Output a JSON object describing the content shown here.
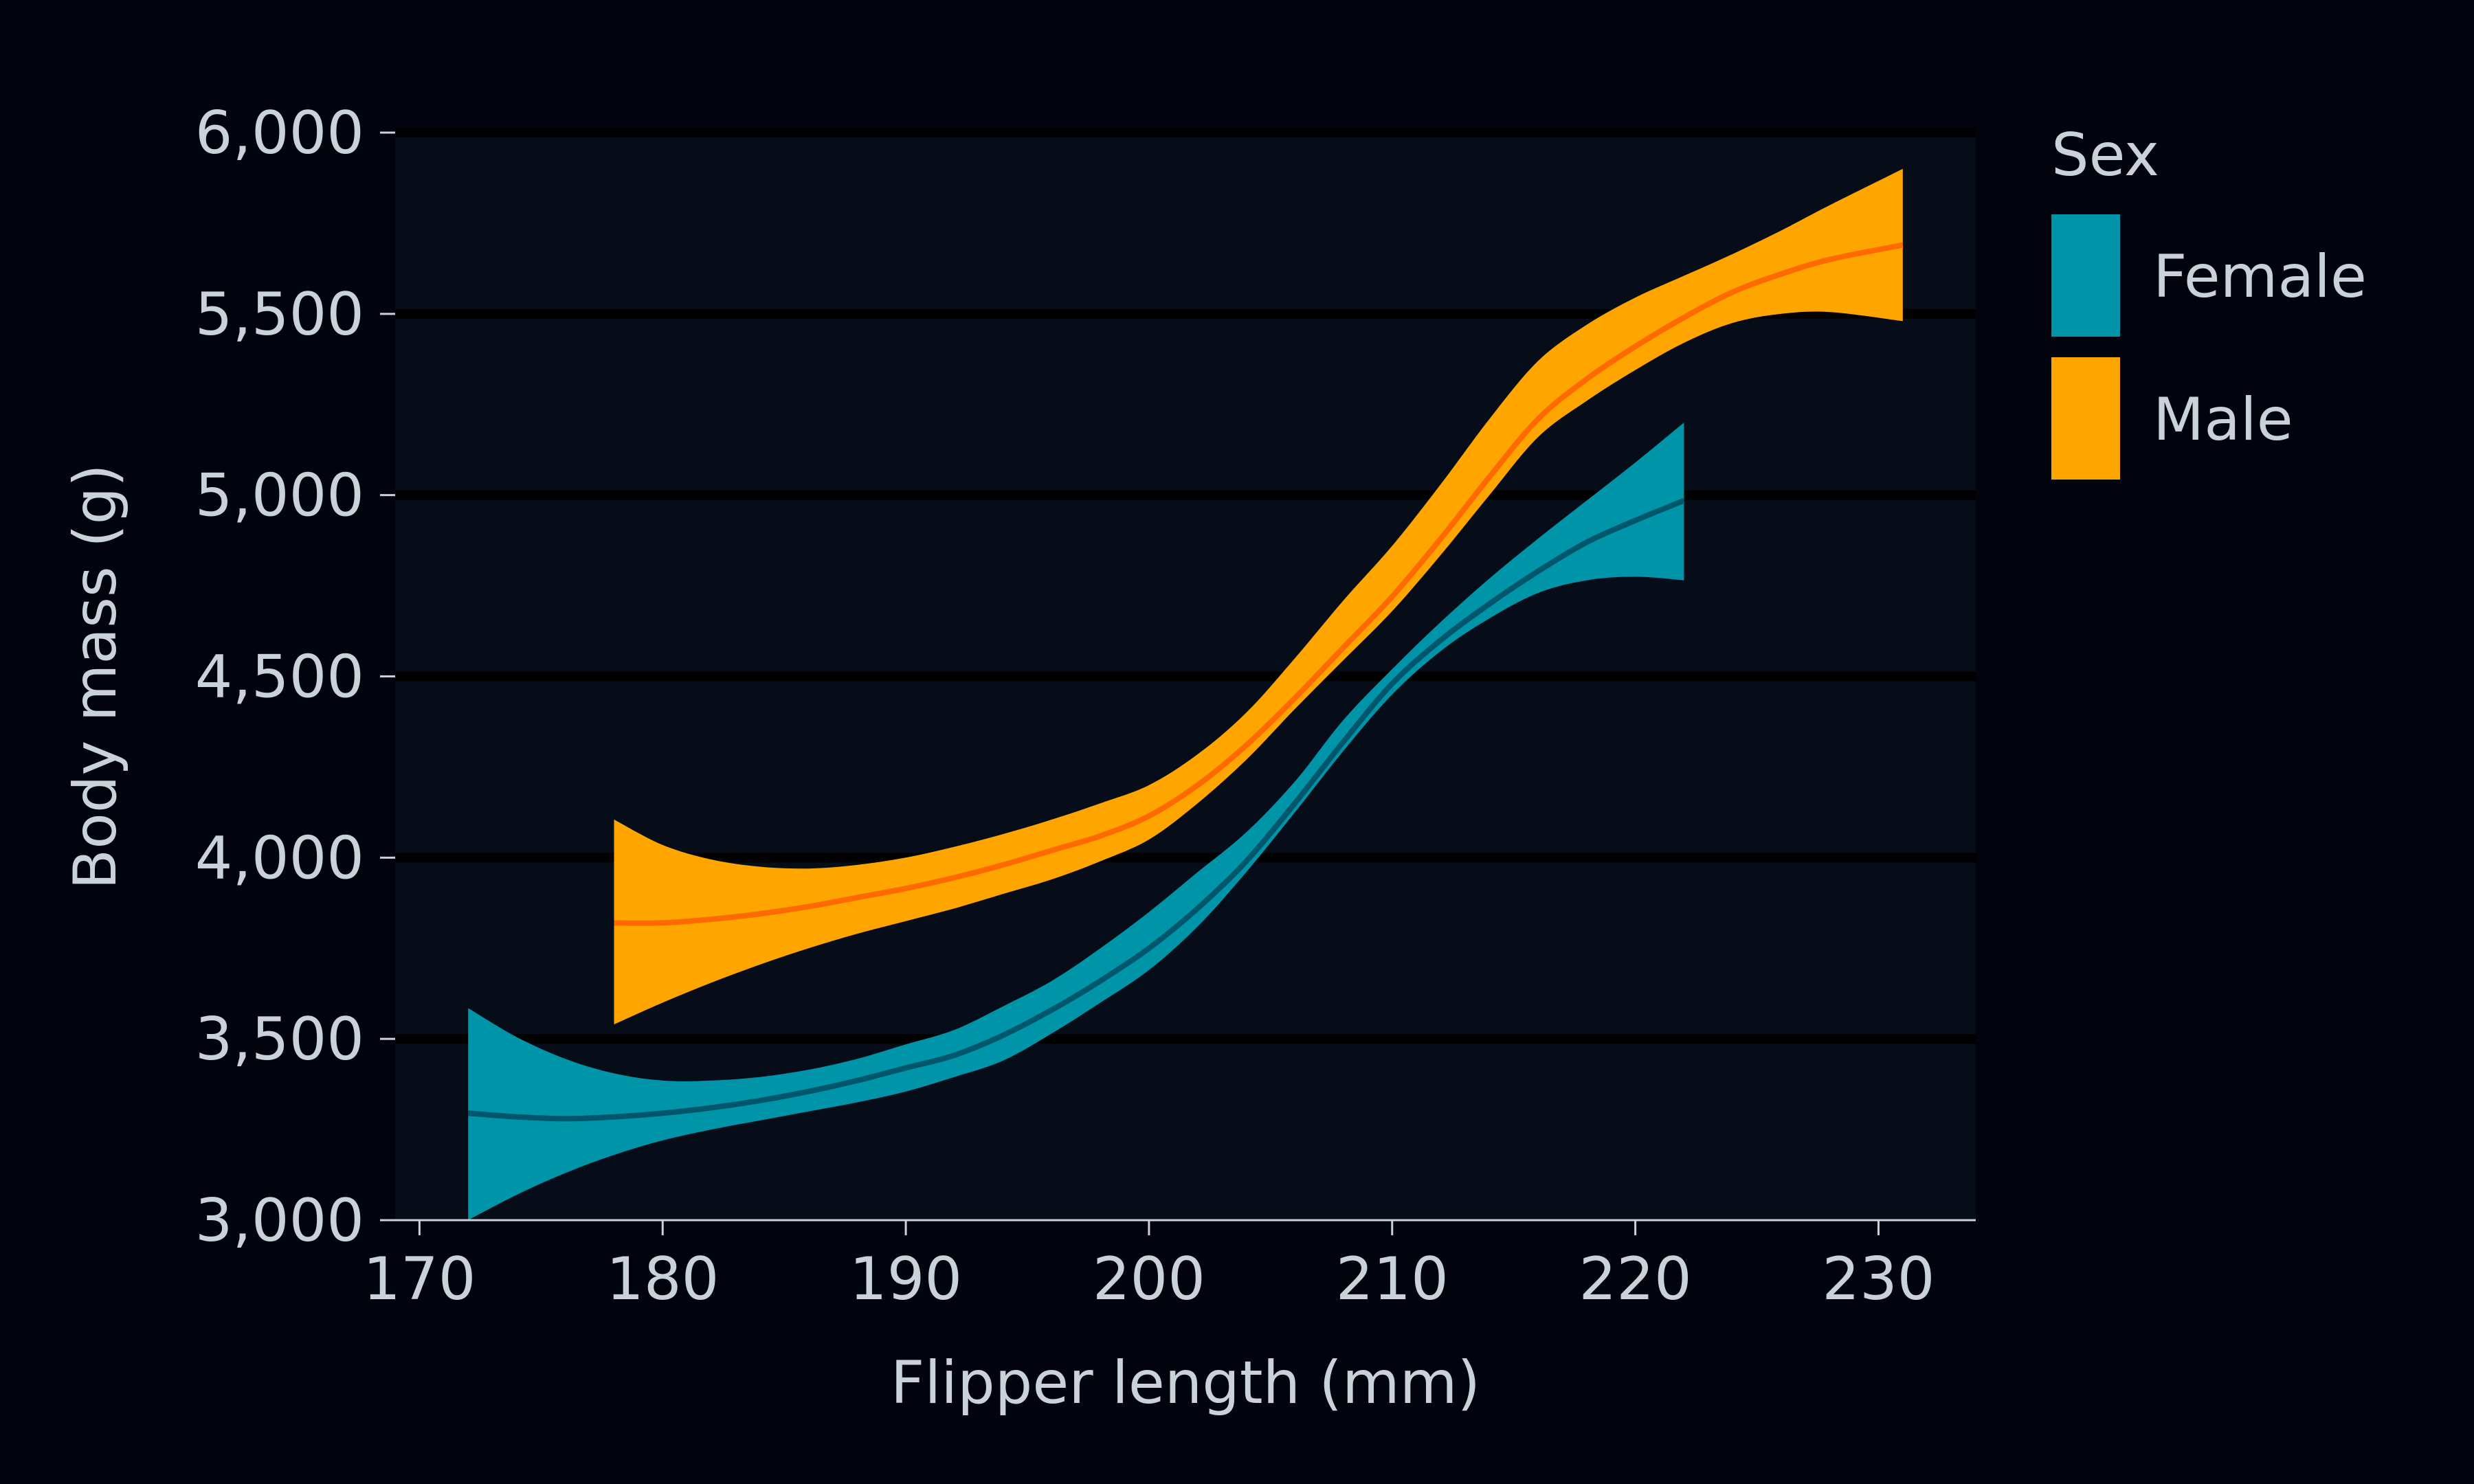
{
  "chart_data": {
    "type": "area",
    "title": "",
    "xlabel": "Flipper length (mm)",
    "ylabel": "Body mass (g)",
    "xlim": [
      169,
      234
    ],
    "ylim": [
      3000,
      6000
    ],
    "x_ticks": [
      170,
      180,
      190,
      200,
      210,
      220,
      230
    ],
    "y_ticks": [
      3000,
      3500,
      4000,
      4500,
      5000,
      5500,
      6000
    ],
    "x_tick_labels": [
      "170",
      "180",
      "190",
      "200",
      "210",
      "220",
      "230"
    ],
    "y_tick_labels": [
      "3,000",
      "3,500",
      "4,000",
      "4,500",
      "5,000",
      "5,500",
      "6,000"
    ],
    "grid": "horizontal",
    "legend": {
      "title": "Sex",
      "position": "right"
    },
    "series": [
      {
        "name": "Female",
        "color": "#0094a9",
        "line_color": "#00566b",
        "x": [
          172,
          174,
          176,
          178,
          180,
          182,
          184,
          186,
          188,
          190,
          192,
          194,
          196,
          198,
          200,
          202,
          204,
          206,
          208,
          210,
          212,
          214,
          216,
          218,
          220,
          222
        ],
        "y": [
          3295,
          3285,
          3280,
          3285,
          3295,
          3310,
          3330,
          3355,
          3385,
          3420,
          3455,
          3510,
          3580,
          3660,
          3750,
          3860,
          3990,
          4150,
          4320,
          4480,
          4600,
          4700,
          4790,
          4870,
          4930,
          4985
        ],
        "lower": [
          3000,
          3070,
          3130,
          3180,
          3220,
          3250,
          3275,
          3300,
          3325,
          3355,
          3395,
          3440,
          3515,
          3600,
          3690,
          3810,
          3960,
          4125,
          4295,
          4450,
          4570,
          4660,
          4730,
          4765,
          4775,
          4765
        ],
        "upper": [
          3585,
          3505,
          3445,
          3405,
          3385,
          3385,
          3395,
          3415,
          3445,
          3485,
          3525,
          3590,
          3660,
          3750,
          3850,
          3960,
          4070,
          4210,
          4380,
          4520,
          4650,
          4770,
          4880,
          4985,
          5090,
          5200
        ]
      },
      {
        "name": "Male",
        "color": "#ffa500",
        "line_color": "#ff6a00",
        "x": [
          178,
          180,
          182,
          184,
          186,
          188,
          190,
          192,
          194,
          196,
          198,
          200,
          202,
          204,
          206,
          208,
          210,
          212,
          214,
          216,
          218,
          220,
          222,
          224,
          226,
          228,
          231
        ],
        "y": [
          3820,
          3820,
          3830,
          3845,
          3865,
          3890,
          3915,
          3945,
          3980,
          4020,
          4060,
          4115,
          4200,
          4310,
          4440,
          4580,
          4720,
          4880,
          5050,
          5210,
          5320,
          5410,
          5490,
          5560,
          5610,
          5650,
          5690
        ],
        "lower": [
          3540,
          3600,
          3655,
          3705,
          3750,
          3790,
          3825,
          3860,
          3900,
          3940,
          3990,
          4050,
          4150,
          4270,
          4410,
          4545,
          4680,
          4835,
          5000,
          5160,
          5260,
          5345,
          5420,
          5475,
          5500,
          5505,
          5480
        ],
        "upper": [
          4105,
          4035,
          3995,
          3975,
          3970,
          3980,
          4000,
          4030,
          4065,
          4105,
          4150,
          4200,
          4285,
          4400,
          4550,
          4710,
          4860,
          5030,
          5210,
          5370,
          5470,
          5545,
          5605,
          5665,
          5730,
          5800,
          5900
        ]
      }
    ]
  }
}
